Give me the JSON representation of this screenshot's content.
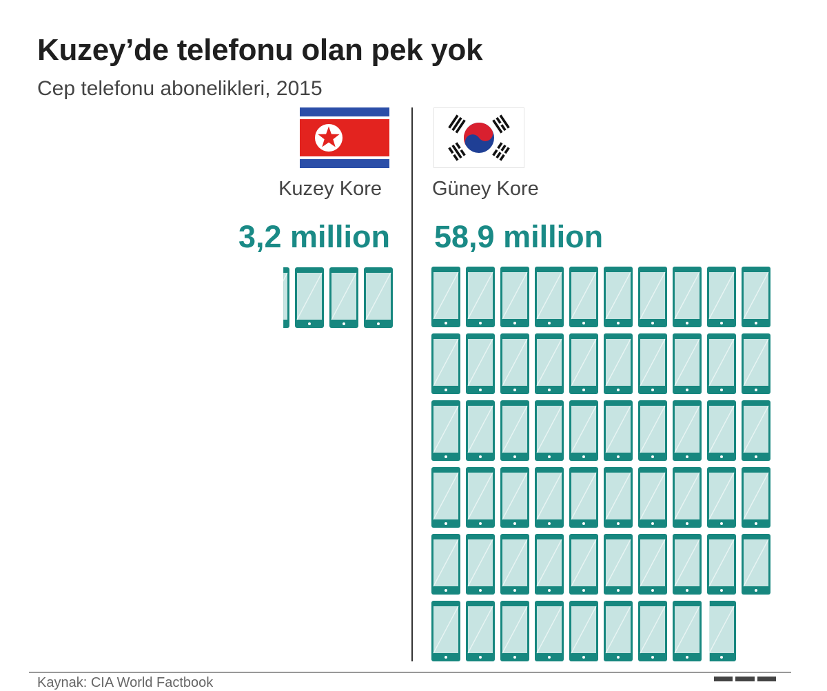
{
  "title": "Kuzey’de telefonu olan pek yok",
  "subtitle": "Cep telefonu abonelikleri, 2015",
  "source": "Kaynak: CIA World Factbook",
  "logo": "BBC",
  "colors": {
    "accent": "#1a8a86",
    "phone_fill": "#c7e4e2",
    "phone_frame": "#17877f"
  },
  "chart_data": {
    "type": "pictogram",
    "unit_per_icon": 1,
    "categories": [
      "Kuzey Kore",
      "Güney Kore"
    ],
    "values": [
      3.2,
      58.9
    ],
    "value_labels": [
      "3,2 million",
      "58,9 million"
    ],
    "icon": "mobile-phone-icon",
    "flags": [
      "north-korea-flag",
      "south-korea-flag"
    ]
  }
}
